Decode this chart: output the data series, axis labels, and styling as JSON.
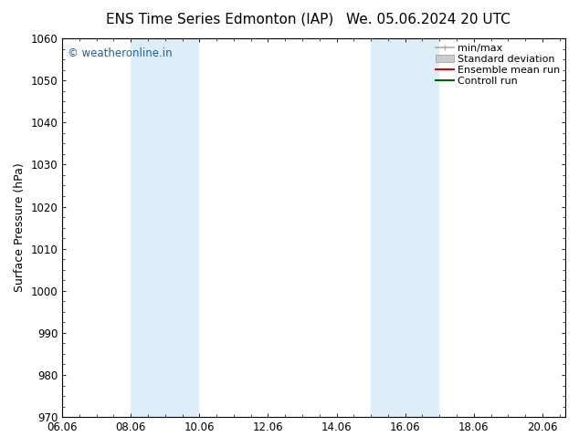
{
  "title_left": "ENS Time Series Edmonton (IAP)",
  "title_right": "We. 05.06.2024 20 UTC",
  "ylabel": "Surface Pressure (hPa)",
  "ylim": [
    970,
    1060
  ],
  "xlim_start": 0.0,
  "xlim_end": 14.67,
  "xtick_labels": [
    "06.06",
    "08.06",
    "10.06",
    "12.06",
    "14.06",
    "16.06",
    "18.06",
    "20.06"
  ],
  "xtick_positions": [
    0,
    2,
    4,
    6,
    8,
    10,
    12,
    14
  ],
  "ytick_positions": [
    970,
    980,
    990,
    1000,
    1010,
    1020,
    1030,
    1040,
    1050,
    1060
  ],
  "shaded_bands": [
    {
      "x_start": 2.0,
      "x_end": 4.0
    },
    {
      "x_start": 9.0,
      "x_end": 11.0
    }
  ],
  "band_color": "#ddeef8",
  "watermark_text": "© weatheronline.in",
  "watermark_color": "#1a5fa8",
  "legend_items": [
    {
      "label": "min/max",
      "color": "#aaaaaa",
      "style": "hline"
    },
    {
      "label": "Standard deviation",
      "color": "#cccccc",
      "style": "bar"
    },
    {
      "label": "Ensemble mean run",
      "color": "#dd0000",
      "style": "line"
    },
    {
      "label": "Controll run",
      "color": "#006600",
      "style": "line"
    }
  ],
  "bg_color": "#ffffff",
  "title_fontsize": 11,
  "tick_label_fontsize": 8.5,
  "ylabel_fontsize": 9,
  "legend_fontsize": 8,
  "watermark_fontsize": 8.5
}
